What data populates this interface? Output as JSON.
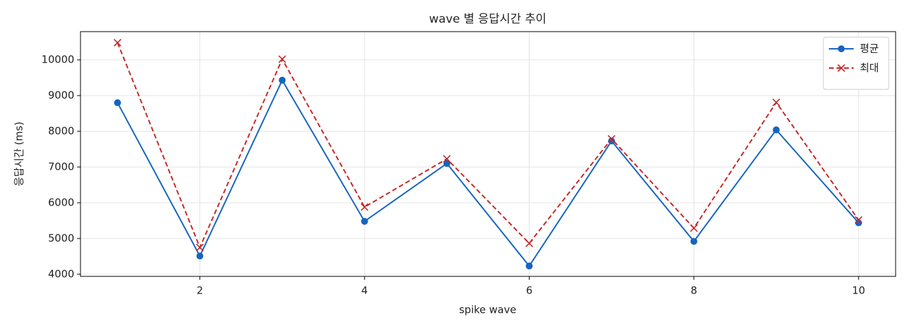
{
  "chart_data": {
    "type": "line",
    "title": "wave 별 응답시간 추이",
    "xlabel": "spike wave",
    "ylabel": "응답시간 (ms)",
    "x": [
      1,
      2,
      3,
      4,
      5,
      6,
      7,
      8,
      9,
      10
    ],
    "series": [
      {
        "name": "평균",
        "color": "#1565c0",
        "marker": "o",
        "linestyle": "solid",
        "values": [
          8800,
          4510,
          9430,
          5480,
          7100,
          4230,
          7730,
          4920,
          8040,
          5440
        ]
      },
      {
        "name": "최대",
        "color": "#c62828",
        "marker": "x",
        "linestyle": "dashed",
        "values": [
          10480,
          4750,
          10020,
          5880,
          7230,
          4865,
          7790,
          5290,
          8810,
          5520
        ]
      }
    ],
    "xlim": [
      0.55,
      10.45
    ],
    "xticks": [
      2,
      4,
      6,
      8,
      10
    ],
    "ylim": [
      3940,
      10790
    ],
    "yticks": [
      4000,
      5000,
      6000,
      7000,
      8000,
      9000,
      10000
    ],
    "grid": true,
    "legend": "upper right"
  }
}
